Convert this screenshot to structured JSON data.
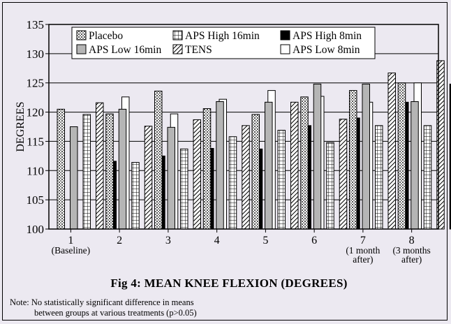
{
  "chart_data": {
    "type": "bar",
    "title": "Fig 4: MEAN KNEE FLEXION (DEGREES)",
    "ylabel": "DEGREES",
    "xlabel": "",
    "ylim": [
      100,
      135
    ],
    "yticks": [
      "100",
      "105",
      "110",
      "115",
      "120",
      "125",
      "130",
      "135"
    ],
    "categories": [
      "1",
      "2",
      "3",
      "4",
      "5",
      "6",
      "7",
      "8"
    ],
    "category_sublabels": [
      "(Baseline)",
      "",
      "",
      "",
      "",
      "",
      "(1 month after)",
      "(3 months after)"
    ],
    "series": [
      {
        "name": "Placebo",
        "values": [
          120.5,
          119.7,
          123.6,
          120.6,
          119.6,
          122.6,
          123.7,
          125
        ]
      },
      {
        "name": "APS Low 16min",
        "values": [
          117.5,
          120.5,
          117.4,
          121.8,
          121.7,
          124.8,
          124.8,
          121.8
        ]
      },
      {
        "name": "APS High 16min",
        "values": [
          119.6,
          111.4,
          113.7,
          115.8,
          116.9,
          114.8,
          117.7,
          117.7
        ]
      },
      {
        "name": "TENS",
        "values": [
          121.6,
          117.6,
          118.7,
          117.7,
          121.7,
          118.8,
          126.7,
          128.8
        ]
      },
      {
        "name": "APS High 8min",
        "values": [
          111.6,
          112.5,
          113.8,
          113.7,
          117.7,
          119.0,
          121.7,
          124.8
        ]
      },
      {
        "name": "APS Low 8min",
        "values": [
          122.6,
          119.7,
          122.2,
          123.7,
          122.7,
          121.7,
          125,
          124.3
        ]
      }
    ],
    "legend": {
      "placement": "top"
    },
    "grid": true
  },
  "note": {
    "line1": "Note: No statistically significant difference in means",
    "line2": "between groups at various treatments (p>0.05)"
  },
  "colors": {
    "background": "#ece9f1",
    "placebo": "#888888",
    "aps_low_16": "#b5b5b5",
    "aps_high_16": "#ffffff",
    "tens": "#ffffff",
    "aps_high_8": "#000000",
    "aps_low_8": "#ffffff"
  }
}
